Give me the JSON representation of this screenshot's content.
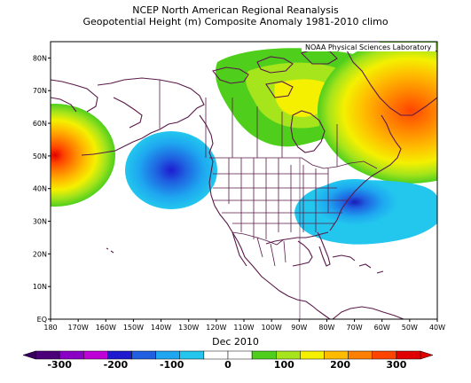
{
  "title_line1": "NCEP North American Regional Reanalysis",
  "title_line2": "Geopotential Height (m) Composite Anomaly 1981-2010 climo",
  "credit": "NOAA Physical Sciences Laboratory",
  "time_label": "Dec 2010",
  "map": {
    "projection": "lat-lon",
    "lon_range": [
      -180,
      -40
    ],
    "lat_range": [
      0,
      85
    ],
    "lon_ticks": [
      "180",
      "170W",
      "160W",
      "150W",
      "140W",
      "130W",
      "120W",
      "110W",
      "100W",
      "90W",
      "80W",
      "70W",
      "60W",
      "50W",
      "40W"
    ],
    "lat_ticks": [
      "EQ",
      "10N",
      "20N",
      "30N",
      "40N",
      "50N",
      "60N",
      "70N",
      "80N"
    ],
    "anomaly_centers": [
      {
        "label": "positive",
        "lon": -180,
        "lat": 50,
        "value": 300
      },
      {
        "label": "negative",
        "lon": -137,
        "lat": 45,
        "value": -200
      },
      {
        "label": "positive",
        "lon": -45,
        "lat": 64,
        "value": 260
      },
      {
        "label": "negative",
        "lon": -71,
        "lat": 36,
        "value": -190
      },
      {
        "label": "positive",
        "lon": -110,
        "lat": 78,
        "value": 150
      }
    ]
  },
  "colorbar": {
    "labels": [
      "-300",
      "-200",
      "-100",
      "0",
      "100",
      "200",
      "300"
    ],
    "colors": [
      "#4b007a",
      "#8a00c4",
      "#c000d8",
      "#1d1ad0",
      "#1f5fe0",
      "#1ea7f0",
      "#23c7ee",
      "#ffffff",
      "#ffffff",
      "#4fcf1c",
      "#a6e41b",
      "#f4f000",
      "#ffbb00",
      "#ff8000",
      "#ff4400",
      "#e00000"
    ]
  }
}
